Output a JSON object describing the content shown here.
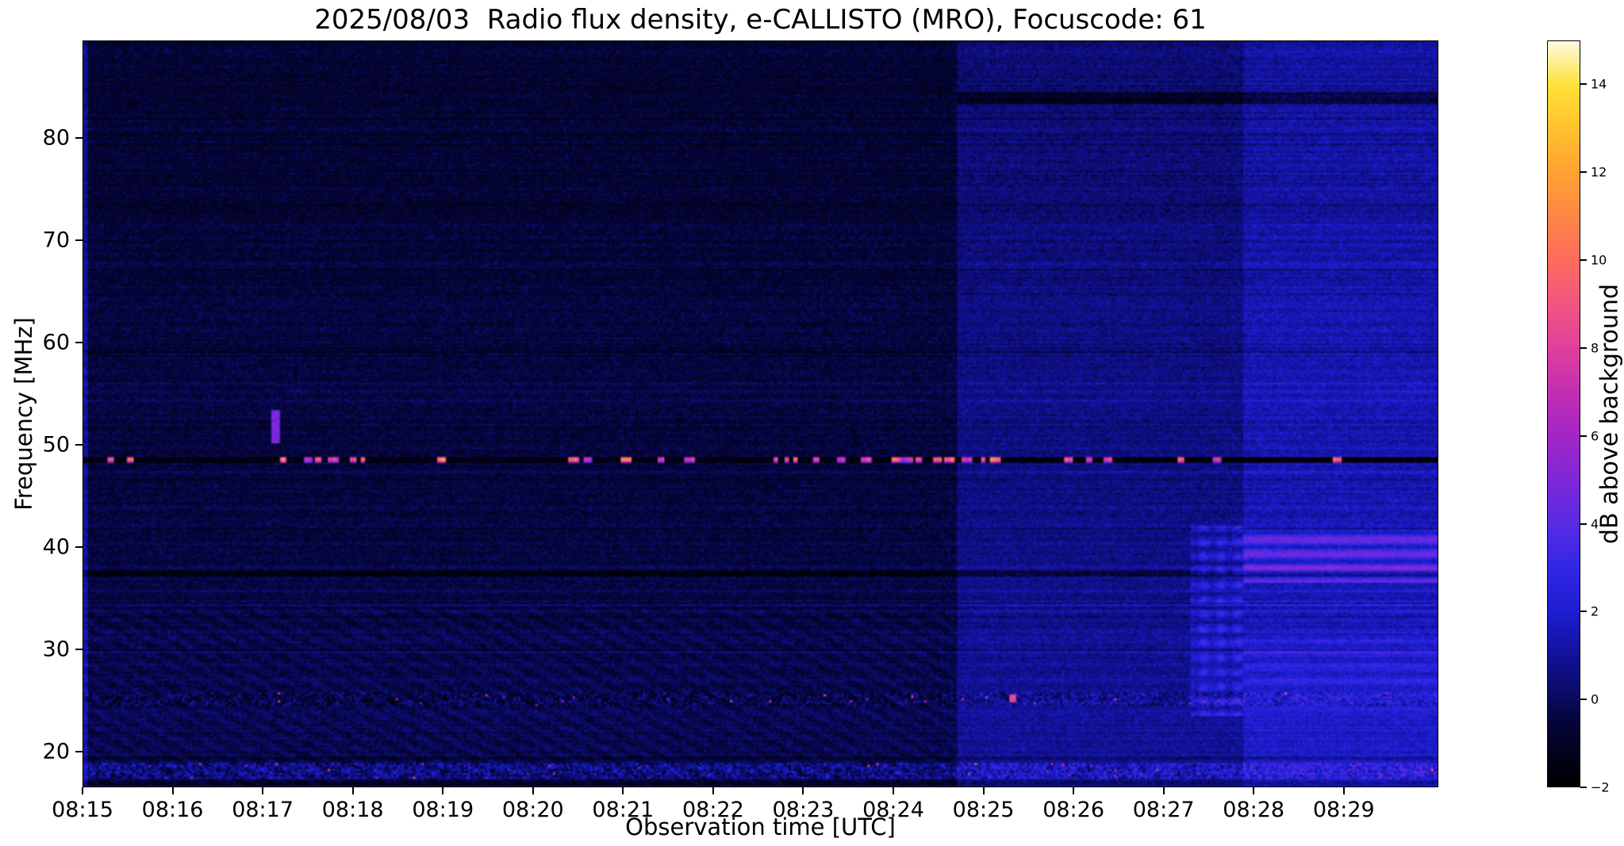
{
  "figure": {
    "background": "#ffffff"
  },
  "chart_data": {
    "type": "heatmap",
    "title": "2025/08/03  Radio flux density, e-CALLISTO (MRO), Focuscode: 61",
    "xlabel": "Observation time [UTC]",
    "ylabel": "Frequency [MHz]",
    "x_tick_labels": [
      "08:15",
      "08:16",
      "08:17",
      "08:18",
      "08:19",
      "08:20",
      "08:21",
      "08:22",
      "08:23",
      "08:24",
      "08:25",
      "08:26",
      "08:27",
      "08:28",
      "08:29"
    ],
    "x_tick_minutes": [
      0,
      1,
      2,
      3,
      4,
      5,
      6,
      7,
      8,
      9,
      10,
      11,
      12,
      13,
      14
    ],
    "x_range_minutes": [
      0,
      15.05
    ],
    "y_ticks_mhz": [
      80,
      70,
      60,
      50,
      40,
      30,
      20
    ],
    "y_range_mhz": [
      16.5,
      89.5
    ],
    "grid": false,
    "legend": "none",
    "colorbar": {
      "label": "dB above background",
      "tick_values": [
        14,
        12,
        10,
        8,
        6,
        4,
        2,
        0,
        -2
      ],
      "value_range": [
        -2,
        15
      ],
      "colormap_stops": [
        {
          "v": -2,
          "c": "#000000"
        },
        {
          "v": -0.5,
          "c": "#05053c"
        },
        {
          "v": 0,
          "c": "#0a0a5e"
        },
        {
          "v": 1,
          "c": "#12129b"
        },
        {
          "v": 2,
          "c": "#1e1ed2"
        },
        {
          "v": 3,
          "c": "#3327e6"
        },
        {
          "v": 4,
          "c": "#5a2be2"
        },
        {
          "v": 5,
          "c": "#7e28d8"
        },
        {
          "v": 6,
          "c": "#a326c6"
        },
        {
          "v": 7,
          "c": "#c32fb2"
        },
        {
          "v": 8,
          "c": "#e0409c"
        },
        {
          "v": 9,
          "c": "#f25580"
        },
        {
          "v": 10,
          "c": "#fe6c60"
        },
        {
          "v": 11,
          "c": "#ff8746"
        },
        {
          "v": 12,
          "c": "#ffa232"
        },
        {
          "v": 13,
          "c": "#ffc22e"
        },
        {
          "v": 14,
          "c": "#ffe13a"
        },
        {
          "v": 15,
          "c": "#fffbe0"
        }
      ]
    },
    "noise_sigma": 0.5,
    "background_segments": [
      {
        "t_start": 0,
        "t_end": 9.72,
        "level_db": -0.55,
        "stripe_gain": 1.0
      },
      {
        "t_start": 9.72,
        "t_end": 12.88,
        "level_db": 0.55,
        "stripe_gain": 1.15
      },
      {
        "t_start": 12.88,
        "t_end": 15.05,
        "level_db": 1.35,
        "stripe_gain": 1.45
      }
    ],
    "diagonal_ripple": {
      "t_end": 9.72,
      "f_max": 34,
      "amp_db": 0.28
    },
    "features": [
      {
        "type": "band_boost",
        "name": "left-edge-calibration-column",
        "t": [
          0,
          0.06
        ],
        "freq": [
          16.5,
          89.5
        ],
        "db": 1.5,
        "stripes": false
      },
      {
        "type": "noise_band",
        "name": "ionospheric-band-25MHz",
        "freq": [
          24.3,
          25.7
        ],
        "amp_db": 1.7,
        "spot_rate": 0.004,
        "spot_db": [
          5,
          9
        ]
      },
      {
        "type": "noise_band",
        "name": "bottom-noise-band-18MHz",
        "freq": [
          17.2,
          18.8
        ],
        "offset_db": 0.9,
        "amp_db": 2.1,
        "spot_rate": 0.006,
        "spot_db": [
          5,
          10
        ]
      },
      {
        "type": "blob",
        "name": "small-burst-0817",
        "t": [
          2.08,
          2.18
        ],
        "freq": [
          50.2,
          53.3
        ],
        "db": 4.8
      },
      {
        "type": "blob",
        "name": "pink-spot-0825",
        "t": [
          10.29,
          10.37
        ],
        "freq": [
          24.7,
          25.5
        ],
        "db": 8.2
      },
      {
        "type": "band_boost",
        "name": "striped-region-0827",
        "t": [
          12.3,
          12.88
        ],
        "freq": [
          23.5,
          42.0
        ],
        "db": 2.6,
        "stripes": true,
        "vstripes": true
      },
      {
        "type": "band_boost",
        "name": "pink-band-37-41MHz-right",
        "t": [
          12.88,
          15.05
        ],
        "freq": [
          36.4,
          41.6
        ],
        "db": 3.2,
        "stripes": true
      },
      {
        "type": "band_boost",
        "name": "band-24-31MHz-right",
        "t": [
          12.88,
          15.05
        ],
        "freq": [
          24.0,
          31.0
        ],
        "db": 0.9,
        "stripes": true
      },
      {
        "type": "dark_channel",
        "name": "dark-line-37MHz",
        "freq": 37.3,
        "half_width_mhz": 0.3,
        "db": -1.3,
        "t": [
          0,
          15.05
        ]
      },
      {
        "type": "dark_channel",
        "name": "dark-line-84MHz",
        "freq": 83.9,
        "half_width_mhz": 0.6,
        "db": -1.5,
        "t": [
          9.72,
          15.05
        ]
      },
      {
        "type": "hline_rfi",
        "name": "rfi-line-48.5MHz",
        "freq": 48.55,
        "half_width_mhz": 0.28,
        "base_db": -1.6,
        "burst_rate": 0.06,
        "burst_len": [
          2,
          5
        ],
        "burst_db": [
          8,
          13.5
        ]
      }
    ]
  }
}
